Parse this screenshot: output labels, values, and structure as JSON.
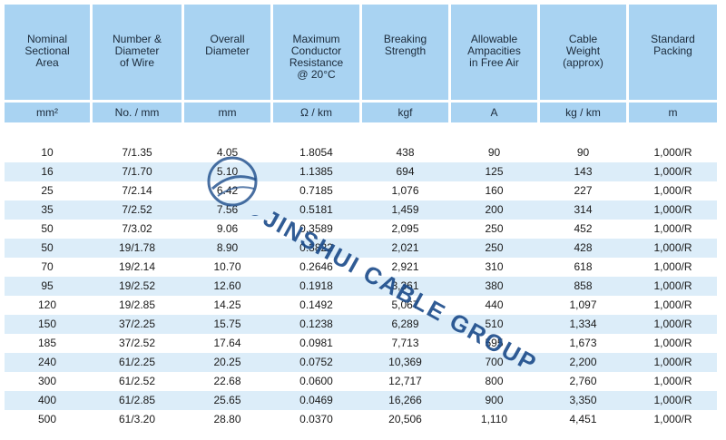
{
  "table": {
    "headers": [
      "Nominal\nSectional\nArea",
      "Number &\nDiameter\nof Wire",
      "Overall\nDiameter",
      "Maximum\nConductor\nResistance\n@ 20°C",
      "Breaking\nStrength",
      "Allowable\nAmpacities\nin Free Air",
      "Cable\nWeight\n(approx)",
      "Standard\nPacking"
    ],
    "units": [
      "mm²",
      "No. / mm",
      "mm",
      "Ω / km",
      "kgf",
      "A",
      "kg / km",
      "m"
    ],
    "rows": [
      [
        "10",
        "7/1.35",
        "4.05",
        "1.8054",
        "438",
        "90",
        "90",
        "1,000/R"
      ],
      [
        "16",
        "7/1.70",
        "5.10",
        "1.1385",
        "694",
        "125",
        "143",
        "1,000/R"
      ],
      [
        "25",
        "7/2.14",
        "6.42",
        "0.7185",
        "1,076",
        "160",
        "227",
        "1,000/R"
      ],
      [
        "35",
        "7/2.52",
        "7.56",
        "0.5181",
        "1,459",
        "200",
        "314",
        "1,000/R"
      ],
      [
        "50",
        "7/3.02",
        "9.06",
        "0.3589",
        "2,095",
        "250",
        "452",
        "1,000/R"
      ],
      [
        "50",
        "19/1.78",
        "8.90",
        "0.3822",
        "2,021",
        "250",
        "428",
        "1,000/R"
      ],
      [
        "70",
        "19/2.14",
        "10.70",
        "0.2646",
        "2,921",
        "310",
        "618",
        "1,000/R"
      ],
      [
        "95",
        "19/2.52",
        "12.60",
        "0.1918",
        "3,361",
        "380",
        "858",
        "1,000/R"
      ],
      [
        "120",
        "19/2.85",
        "14.25",
        "0.1492",
        "5,067",
        "440",
        "1,097",
        "1,000/R"
      ],
      [
        "150",
        "37/2.25",
        "15.75",
        "0.1238",
        "6,289",
        "510",
        "1,334",
        "1,000/R"
      ],
      [
        "185",
        "37/2.52",
        "17.64",
        "0.0981",
        "7,713",
        "595",
        "1,673",
        "1,000/R"
      ],
      [
        "240",
        "61/2.25",
        "20.25",
        "0.0752",
        "10,369",
        "700",
        "2,200",
        "1,000/R"
      ],
      [
        "300",
        "61/2.52",
        "22.68",
        "0.0600",
        "12,717",
        "800",
        "2,760",
        "1,000/R"
      ],
      [
        "400",
        "61/2.85",
        "25.65",
        "0.0469",
        "16,266",
        "900",
        "3,350",
        "1,000/R"
      ],
      [
        "500",
        "61/3.20",
        "28.80",
        "0.0370",
        "20,506",
        "1,110",
        "4,451",
        "1,000/R"
      ]
    ]
  },
  "watermark": {
    "text": "JINSHUI CABLE GROUP",
    "color": "#1b4b8a"
  },
  "colors": {
    "header_bg": "#a9d3f2",
    "stripe_bg": "#dcedf9"
  }
}
